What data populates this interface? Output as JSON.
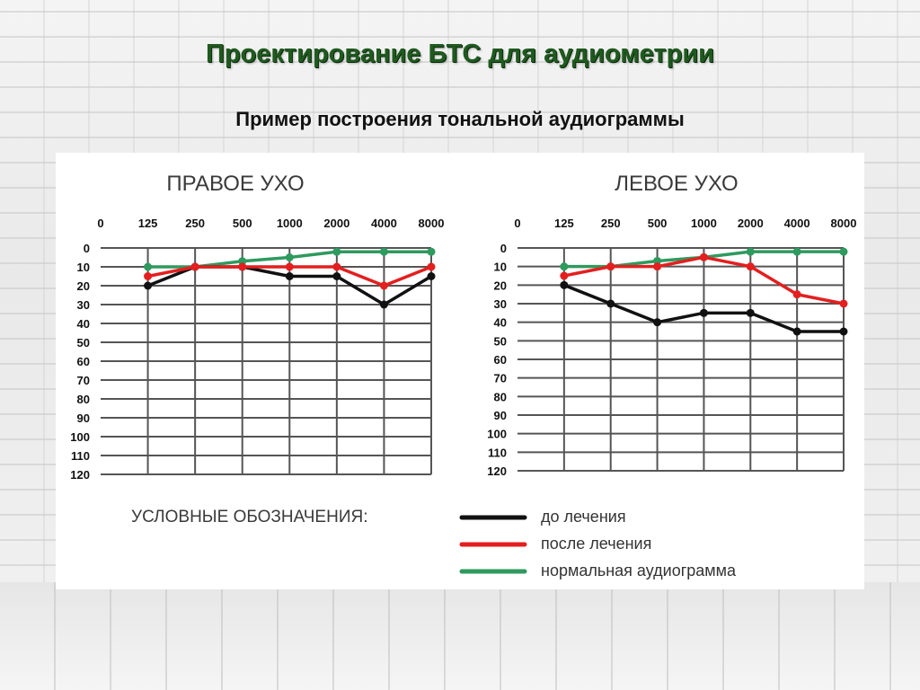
{
  "slide": {
    "title": "Проектирование БТС для аудиометрии",
    "subtitle": "Пример построения тональной аудиограммы"
  },
  "legend": {
    "title": "УСЛОВНЫЕ ОБОЗНАЧЕНИЯ:",
    "items": [
      {
        "label": "до лечения",
        "color": "#111111"
      },
      {
        "label": "после лечения",
        "color": "#e41f1f"
      },
      {
        "label": "нормальная аудиограмма",
        "color": "#2e9a5e"
      }
    ]
  },
  "chart_data": [
    {
      "type": "line",
      "title": "ПРАВОЕ УХО",
      "x_tick_labels": [
        "0",
        "125",
        "250",
        "500",
        "1000",
        "2000",
        "4000",
        "8000"
      ],
      "y_tick_labels": [
        "0",
        "10",
        "20",
        "30",
        "40",
        "50",
        "60",
        "70",
        "80",
        "90",
        "100",
        "110",
        "120"
      ],
      "ylim": [
        0,
        120
      ],
      "y_inverted": true,
      "grid": true,
      "x": [
        "125",
        "250",
        "500",
        "1000",
        "2000",
        "4000",
        "8000"
      ],
      "series": [
        {
          "name": "до лечения",
          "color": "#111111",
          "values": [
            20,
            10,
            10,
            15,
            15,
            30,
            15
          ]
        },
        {
          "name": "после лечения",
          "color": "#e41f1f",
          "values": [
            15,
            10,
            10,
            10,
            10,
            20,
            10
          ]
        },
        {
          "name": "нормальная аудиограмма",
          "color": "#2e9a5e",
          "values": [
            10,
            10,
            7,
            5,
            2,
            2,
            2
          ]
        }
      ]
    },
    {
      "type": "line",
      "title": "ЛЕВОЕ УХО",
      "x_tick_labels": [
        "0",
        "125",
        "250",
        "500",
        "1000",
        "2000",
        "4000",
        "8000"
      ],
      "y_tick_labels": [
        "0",
        "10",
        "20",
        "30",
        "40",
        "50",
        "60",
        "70",
        "80",
        "90",
        "100",
        "110",
        "120"
      ],
      "ylim": [
        0,
        120
      ],
      "y_inverted": true,
      "grid": true,
      "x": [
        "125",
        "250",
        "500",
        "1000",
        "2000",
        "4000",
        "8000"
      ],
      "series": [
        {
          "name": "до лечения",
          "color": "#111111",
          "values": [
            20,
            30,
            40,
            35,
            35,
            45,
            45
          ]
        },
        {
          "name": "после лечения",
          "color": "#e41f1f",
          "values": [
            15,
            10,
            10,
            5,
            10,
            25,
            30
          ]
        },
        {
          "name": "нормальная аудиограмма",
          "color": "#2e9a5e",
          "values": [
            10,
            10,
            7,
            5,
            2,
            2,
            2
          ]
        }
      ]
    }
  ]
}
